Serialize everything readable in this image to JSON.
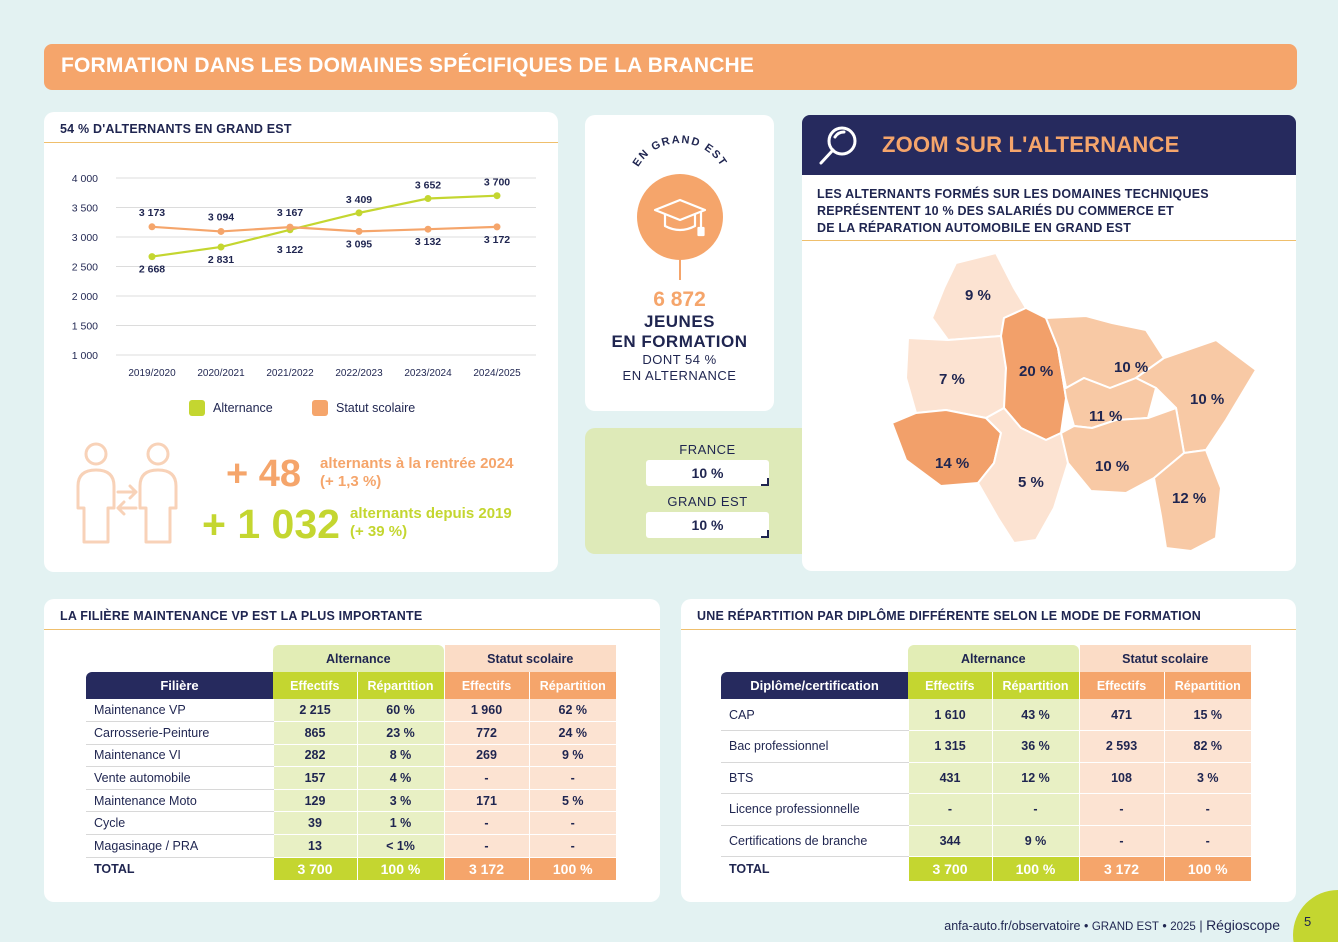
{
  "banner": {
    "title": "FORMATION DANS LES DOMAINES SPÉCIFIQUES DE LA BRANCHE"
  },
  "chart_card": {
    "title": "54 % D'ALTERNANTS EN GRAND EST",
    "legend": [
      "Alternance",
      "Statut scolaire"
    ],
    "kpi1": {
      "value": "+ 48",
      "text": "alternants à la rentrée 2024",
      "sub": "(+ 1,3 %)"
    },
    "kpi2": {
      "value": "+ 1 032",
      "text": "alternants depuis 2019",
      "sub": "(+ 39 %)"
    }
  },
  "chart_data": {
    "type": "line",
    "x": [
      "2019/2020",
      "2020/2021",
      "2021/2022",
      "2022/2023",
      "2023/2024",
      "2024/2025"
    ],
    "series": [
      {
        "name": "Alternance",
        "values": [
          2668,
          2831,
          3122,
          3409,
          3652,
          3700
        ],
        "labels": [
          "2 668",
          "2 831",
          "3 122",
          "3 409",
          "3 652",
          "3 700"
        ],
        "color": "#c4d630"
      },
      {
        "name": "Statut scolaire",
        "values": [
          3173,
          3094,
          3167,
          3095,
          3132,
          3172
        ],
        "labels": [
          "3 173",
          "3 094",
          "3 167",
          "3 095",
          "3 132",
          "3 172"
        ],
        "color": "#f5a56b"
      }
    ],
    "yticks": [
      "4 000",
      "3 500",
      "3 000",
      "2 500",
      "2 000",
      "1 500",
      "1 000"
    ],
    "ylim": [
      1000,
      4000
    ],
    "grid": true,
    "legend_position": "bottom"
  },
  "center": {
    "arc_text": "EN GRAND EST",
    "number": "6 872",
    "line1": "JEUNES",
    "line2": "EN FORMATION",
    "line3": "DONT 54 %",
    "line4": "EN ALTERNANCE",
    "icon": "graduation-cap-icon"
  },
  "compare": {
    "france_label": "FRANCE",
    "france_value": "10 %",
    "grandest_label": "GRAND EST",
    "grandest_value": "10 %"
  },
  "zoom": {
    "title": "ZOOM SUR L'ALTERNANCE",
    "text1": "LES ALTERNANTS FORMÉS SUR LES DOMAINES TECHNIQUES",
    "text2": "REPRÉSENTENT 10 % DES SALARIÉS DU COMMERCE ET",
    "text3": "DE LA RÉPARATION AUTOMOBILE EN GRAND EST",
    "map_labels": [
      "9 %",
      "7 %",
      "20 %",
      "10 %",
      "10 %",
      "11 %",
      "14 %",
      "5 %",
      "10 %",
      "12 %"
    ]
  },
  "filiere": {
    "title": "LA FILIÈRE MAINTENANCE VP EST LA PLUS IMPORTANTE",
    "group_alt": "Alternance",
    "group_sco": "Statut scolaire",
    "headers": [
      "Filière",
      "Effectifs",
      "Répartition",
      "Effectifs",
      "Répartition"
    ],
    "rows": [
      [
        "Maintenance VP",
        "2 215",
        "60 %",
        "1 960",
        "62 %"
      ],
      [
        "Carrosserie-Peinture",
        "865",
        "23 %",
        "772",
        "24 %"
      ],
      [
        "Maintenance VI",
        "282",
        "8 %",
        "269",
        "9 %"
      ],
      [
        "Vente automobile",
        "157",
        "4 %",
        "-",
        "-"
      ],
      [
        "Maintenance Moto",
        "129",
        "3 %",
        "171",
        "5 %"
      ],
      [
        "Cycle",
        "39",
        "1 %",
        "-",
        "-"
      ],
      [
        "Magasinage / PRA",
        "13",
        "< 1%",
        "-",
        "-"
      ]
    ],
    "total": [
      "TOTAL",
      "3 700",
      "100 %",
      "3 172",
      "100 %"
    ]
  },
  "diplome": {
    "title": "UNE RÉPARTITION PAR DIPLÔME DIFFÉRENTE SELON LE MODE DE FORMATION",
    "group_alt": "Alternance",
    "group_sco": "Statut scolaire",
    "headers": [
      "Diplôme/certification",
      "Effectifs",
      "Répartition",
      "Effectifs",
      "Répartition"
    ],
    "rows": [
      [
        "CAP",
        "1 610",
        "43 %",
        "471",
        "15 %"
      ],
      [
        "Bac professionnel",
        "1 315",
        "36 %",
        "2 593",
        "82 %"
      ],
      [
        "BTS",
        "431",
        "12 %",
        "108",
        "3 %"
      ],
      [
        "Licence professionnelle",
        "-",
        "-",
        "-",
        "-"
      ],
      [
        "Certifications de branche",
        "344",
        "9 %",
        "-",
        "-"
      ]
    ],
    "total": [
      "TOTAL",
      "3 700",
      "100 %",
      "3 172",
      "100 %"
    ]
  },
  "footer": {
    "url": "anfa-auto.fr/observatoire",
    "region": "GRAND EST",
    "year": "2025",
    "brand": "Régioscope",
    "page": "5"
  },
  "colors": {
    "orange": "#f5a56b",
    "green": "#c4d630",
    "navy": "#262a5e"
  }
}
